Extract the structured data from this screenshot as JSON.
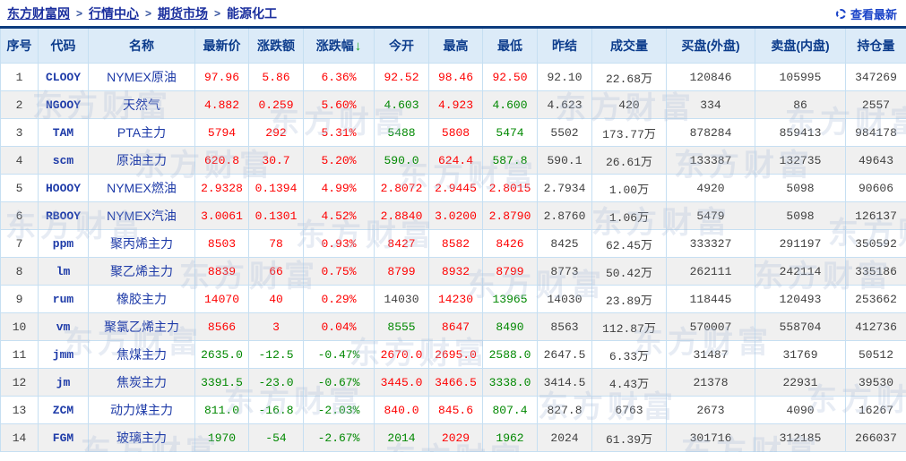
{
  "breadcrumb": {
    "separator": ">",
    "items": [
      {
        "label": "东方财富网",
        "link": true
      },
      {
        "label": "行情中心",
        "link": true
      },
      {
        "label": "期货市场",
        "link": true
      },
      {
        "label": "能源化工",
        "link": false
      }
    ]
  },
  "toolbar": {
    "refresh_label": "查看最新",
    "refresh_icon": "refresh-circle-icon"
  },
  "watermark": {
    "text": "东方财富"
  },
  "colors": {
    "up": "#fe0000",
    "down": "#008800",
    "flat": "#404040",
    "link_blue": "#1e3ba8",
    "header_navy": "#0c3c8c",
    "sort_arrow_green": "#19a31f",
    "header_bg": "#dcebf8",
    "top_border": "#0d3c7e",
    "grid_line": "#c6dff2"
  },
  "table": {
    "columns": [
      {
        "key": "serial",
        "label": "序号"
      },
      {
        "key": "code",
        "label": "代码"
      },
      {
        "key": "name",
        "label": "名称"
      },
      {
        "key": "last",
        "label": "最新价"
      },
      {
        "key": "chg",
        "label": "涨跌额"
      },
      {
        "key": "pct",
        "label": "涨跌幅",
        "sorted": "desc"
      },
      {
        "key": "open",
        "label": "今开"
      },
      {
        "key": "high",
        "label": "最高"
      },
      {
        "key": "low",
        "label": "最低"
      },
      {
        "key": "prev",
        "label": "昨结"
      },
      {
        "key": "vol",
        "label": "成交量"
      },
      {
        "key": "buy",
        "label": "买盘(外盘)"
      },
      {
        "key": "sell",
        "label": "卖盘(内盘)"
      },
      {
        "key": "oi",
        "label": "持仓量"
      }
    ],
    "rows": [
      {
        "serial": "1",
        "code": "CLOOY",
        "name": "NYMEX原油",
        "last": "97.96",
        "chg": "5.86",
        "pct": "6.36%",
        "open": "92.52",
        "high": "98.46",
        "low": "92.50",
        "prev": "92.10",
        "vol": "22.68万",
        "buy": "120846",
        "sell": "105995",
        "oi": "347269",
        "tone": {
          "last": "up",
          "chg": "up",
          "pct": "up",
          "open": "up",
          "high": "up",
          "low": "up"
        }
      },
      {
        "serial": "2",
        "code": "NGOOY",
        "name": "天然气",
        "last": "4.882",
        "chg": "0.259",
        "pct": "5.60%",
        "open": "4.603",
        "high": "4.923",
        "low": "4.600",
        "prev": "4.623",
        "vol": "420",
        "buy": "334",
        "sell": "86",
        "oi": "2557",
        "tone": {
          "last": "up",
          "chg": "up",
          "pct": "up",
          "open": "down",
          "high": "up",
          "low": "down"
        }
      },
      {
        "serial": "3",
        "code": "TAM",
        "name": "PTA主力",
        "last": "5794",
        "chg": "292",
        "pct": "5.31%",
        "open": "5488",
        "high": "5808",
        "low": "5474",
        "prev": "5502",
        "vol": "173.77万",
        "buy": "878284",
        "sell": "859413",
        "oi": "984178",
        "tone": {
          "last": "up",
          "chg": "up",
          "pct": "up",
          "open": "down",
          "high": "up",
          "low": "down"
        }
      },
      {
        "serial": "4",
        "code": "scm",
        "name": "原油主力",
        "last": "620.8",
        "chg": "30.7",
        "pct": "5.20%",
        "open": "590.0",
        "high": "624.4",
        "low": "587.8",
        "prev": "590.1",
        "vol": "26.61万",
        "buy": "133387",
        "sell": "132735",
        "oi": "49643",
        "tone": {
          "last": "up",
          "chg": "up",
          "pct": "up",
          "open": "down",
          "high": "up",
          "low": "down"
        }
      },
      {
        "serial": "5",
        "code": "HOOOY",
        "name": "NYMEX燃油",
        "last": "2.9328",
        "chg": "0.1394",
        "pct": "4.99%",
        "open": "2.8072",
        "high": "2.9445",
        "low": "2.8015",
        "prev": "2.7934",
        "vol": "1.00万",
        "buy": "4920",
        "sell": "5098",
        "oi": "90606",
        "tone": {
          "last": "up",
          "chg": "up",
          "pct": "up",
          "open": "up",
          "high": "up",
          "low": "up"
        }
      },
      {
        "serial": "6",
        "code": "RBOOY",
        "name": "NYMEX汽油",
        "last": "3.0061",
        "chg": "0.1301",
        "pct": "4.52%",
        "open": "2.8840",
        "high": "3.0200",
        "low": "2.8790",
        "prev": "2.8760",
        "vol": "1.06万",
        "buy": "5479",
        "sell": "5098",
        "oi": "126137",
        "tone": {
          "last": "up",
          "chg": "up",
          "pct": "up",
          "open": "up",
          "high": "up",
          "low": "up"
        }
      },
      {
        "serial": "7",
        "code": "ppm",
        "name": "聚丙烯主力",
        "last": "8503",
        "chg": "78",
        "pct": "0.93%",
        "open": "8427",
        "high": "8582",
        "low": "8426",
        "prev": "8425",
        "vol": "62.45万",
        "buy": "333327",
        "sell": "291197",
        "oi": "350592",
        "tone": {
          "last": "up",
          "chg": "up",
          "pct": "up",
          "open": "up",
          "high": "up",
          "low": "up"
        }
      },
      {
        "serial": "8",
        "code": "lm",
        "name": "聚乙烯主力",
        "last": "8839",
        "chg": "66",
        "pct": "0.75%",
        "open": "8799",
        "high": "8932",
        "low": "8799",
        "prev": "8773",
        "vol": "50.42万",
        "buy": "262111",
        "sell": "242114",
        "oi": "335186",
        "tone": {
          "last": "up",
          "chg": "up",
          "pct": "up",
          "open": "up",
          "high": "up",
          "low": "up"
        }
      },
      {
        "serial": "9",
        "code": "rum",
        "name": "橡胶主力",
        "last": "14070",
        "chg": "40",
        "pct": "0.29%",
        "open": "14030",
        "high": "14230",
        "low": "13965",
        "prev": "14030",
        "vol": "23.89万",
        "buy": "118445",
        "sell": "120493",
        "oi": "253662",
        "tone": {
          "last": "up",
          "chg": "up",
          "pct": "up",
          "open": "flat",
          "high": "up",
          "low": "down"
        }
      },
      {
        "serial": "10",
        "code": "vm",
        "name": "聚氯乙烯主力",
        "last": "8566",
        "chg": "3",
        "pct": "0.04%",
        "open": "8555",
        "high": "8647",
        "low": "8490",
        "prev": "8563",
        "vol": "112.87万",
        "buy": "570007",
        "sell": "558704",
        "oi": "412736",
        "tone": {
          "last": "up",
          "chg": "up",
          "pct": "up",
          "open": "down",
          "high": "up",
          "low": "down"
        }
      },
      {
        "serial": "11",
        "code": "jmm",
        "name": "焦煤主力",
        "last": "2635.0",
        "chg": "-12.5",
        "pct": "-0.47%",
        "open": "2670.0",
        "high": "2695.0",
        "low": "2588.0",
        "prev": "2647.5",
        "vol": "6.33万",
        "buy": "31487",
        "sell": "31769",
        "oi": "50512",
        "tone": {
          "last": "down",
          "chg": "down",
          "pct": "down",
          "open": "up",
          "high": "up",
          "low": "down"
        }
      },
      {
        "serial": "12",
        "code": "jm",
        "name": "焦炭主力",
        "last": "3391.5",
        "chg": "-23.0",
        "pct": "-0.67%",
        "open": "3445.0",
        "high": "3466.5",
        "low": "3338.0",
        "prev": "3414.5",
        "vol": "4.43万",
        "buy": "21378",
        "sell": "22931",
        "oi": "39530",
        "tone": {
          "last": "down",
          "chg": "down",
          "pct": "down",
          "open": "up",
          "high": "up",
          "low": "down"
        }
      },
      {
        "serial": "13",
        "code": "ZCM",
        "name": "动力煤主力",
        "last": "811.0",
        "chg": "-16.8",
        "pct": "-2.03%",
        "open": "840.0",
        "high": "845.6",
        "low": "807.4",
        "prev": "827.8",
        "vol": "6763",
        "buy": "2673",
        "sell": "4090",
        "oi": "16267",
        "tone": {
          "last": "down",
          "chg": "down",
          "pct": "down",
          "open": "up",
          "high": "up",
          "low": "down"
        }
      },
      {
        "serial": "14",
        "code": "FGM",
        "name": "玻璃主力",
        "last": "1970",
        "chg": "-54",
        "pct": "-2.67%",
        "open": "2014",
        "high": "2029",
        "low": "1962",
        "prev": "2024",
        "vol": "61.39万",
        "buy": "301716",
        "sell": "312185",
        "oi": "266037",
        "tone": {
          "last": "down",
          "chg": "down",
          "pct": "down",
          "open": "down",
          "high": "up",
          "low": "down"
        }
      }
    ]
  }
}
